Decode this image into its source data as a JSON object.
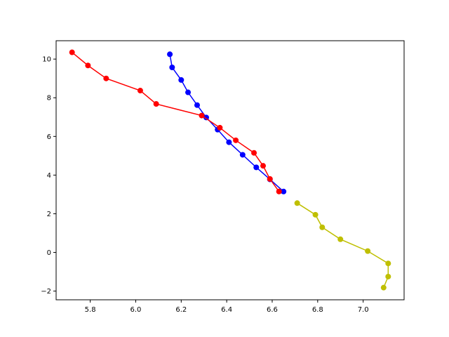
{
  "chart_data": {
    "type": "line",
    "title": "",
    "xlabel": "",
    "ylabel": "",
    "xlim": [
      5.65,
      7.18
    ],
    "ylim": [
      -2.45,
      10.95
    ],
    "xticks": [
      5.8,
      6.0,
      6.2,
      6.4,
      6.6,
      6.8,
      7.0
    ],
    "xtick_labels": [
      "5.8",
      "6.0",
      "6.2",
      "6.4",
      "6.6",
      "6.8",
      "7.0"
    ],
    "yticks": [
      -2,
      0,
      2,
      4,
      6,
      8,
      10
    ],
    "ytick_labels": [
      "−2",
      "0",
      "2",
      "4",
      "6",
      "8",
      "10"
    ],
    "grid": false,
    "series": [
      {
        "color": "#0000ff",
        "x": [
          6.15,
          6.16,
          6.2,
          6.23,
          6.27,
          6.31,
          6.36,
          6.41,
          6.47,
          6.53,
          6.59,
          6.65
        ],
        "y": [
          10.25,
          9.57,
          8.92,
          8.28,
          7.62,
          6.98,
          6.35,
          5.7,
          5.05,
          4.4,
          3.78,
          3.15
        ]
      },
      {
        "color": "#ff0000",
        "x": [
          5.72,
          5.79,
          5.87,
          6.02,
          6.09,
          6.29,
          6.37,
          6.44,
          6.52,
          6.56,
          6.59,
          6.63
        ],
        "y": [
          10.35,
          9.67,
          9.0,
          8.37,
          7.68,
          7.08,
          6.45,
          5.8,
          5.15,
          4.48,
          3.8,
          3.15
        ]
      },
      {
        "color": "#bfbf00",
        "x": [
          6.71,
          6.79,
          6.82,
          6.9,
          7.02,
          7.11,
          7.11,
          7.09
        ],
        "y": [
          2.55,
          1.95,
          1.3,
          0.68,
          0.07,
          -0.57,
          -1.25,
          -1.82
        ]
      }
    ]
  }
}
